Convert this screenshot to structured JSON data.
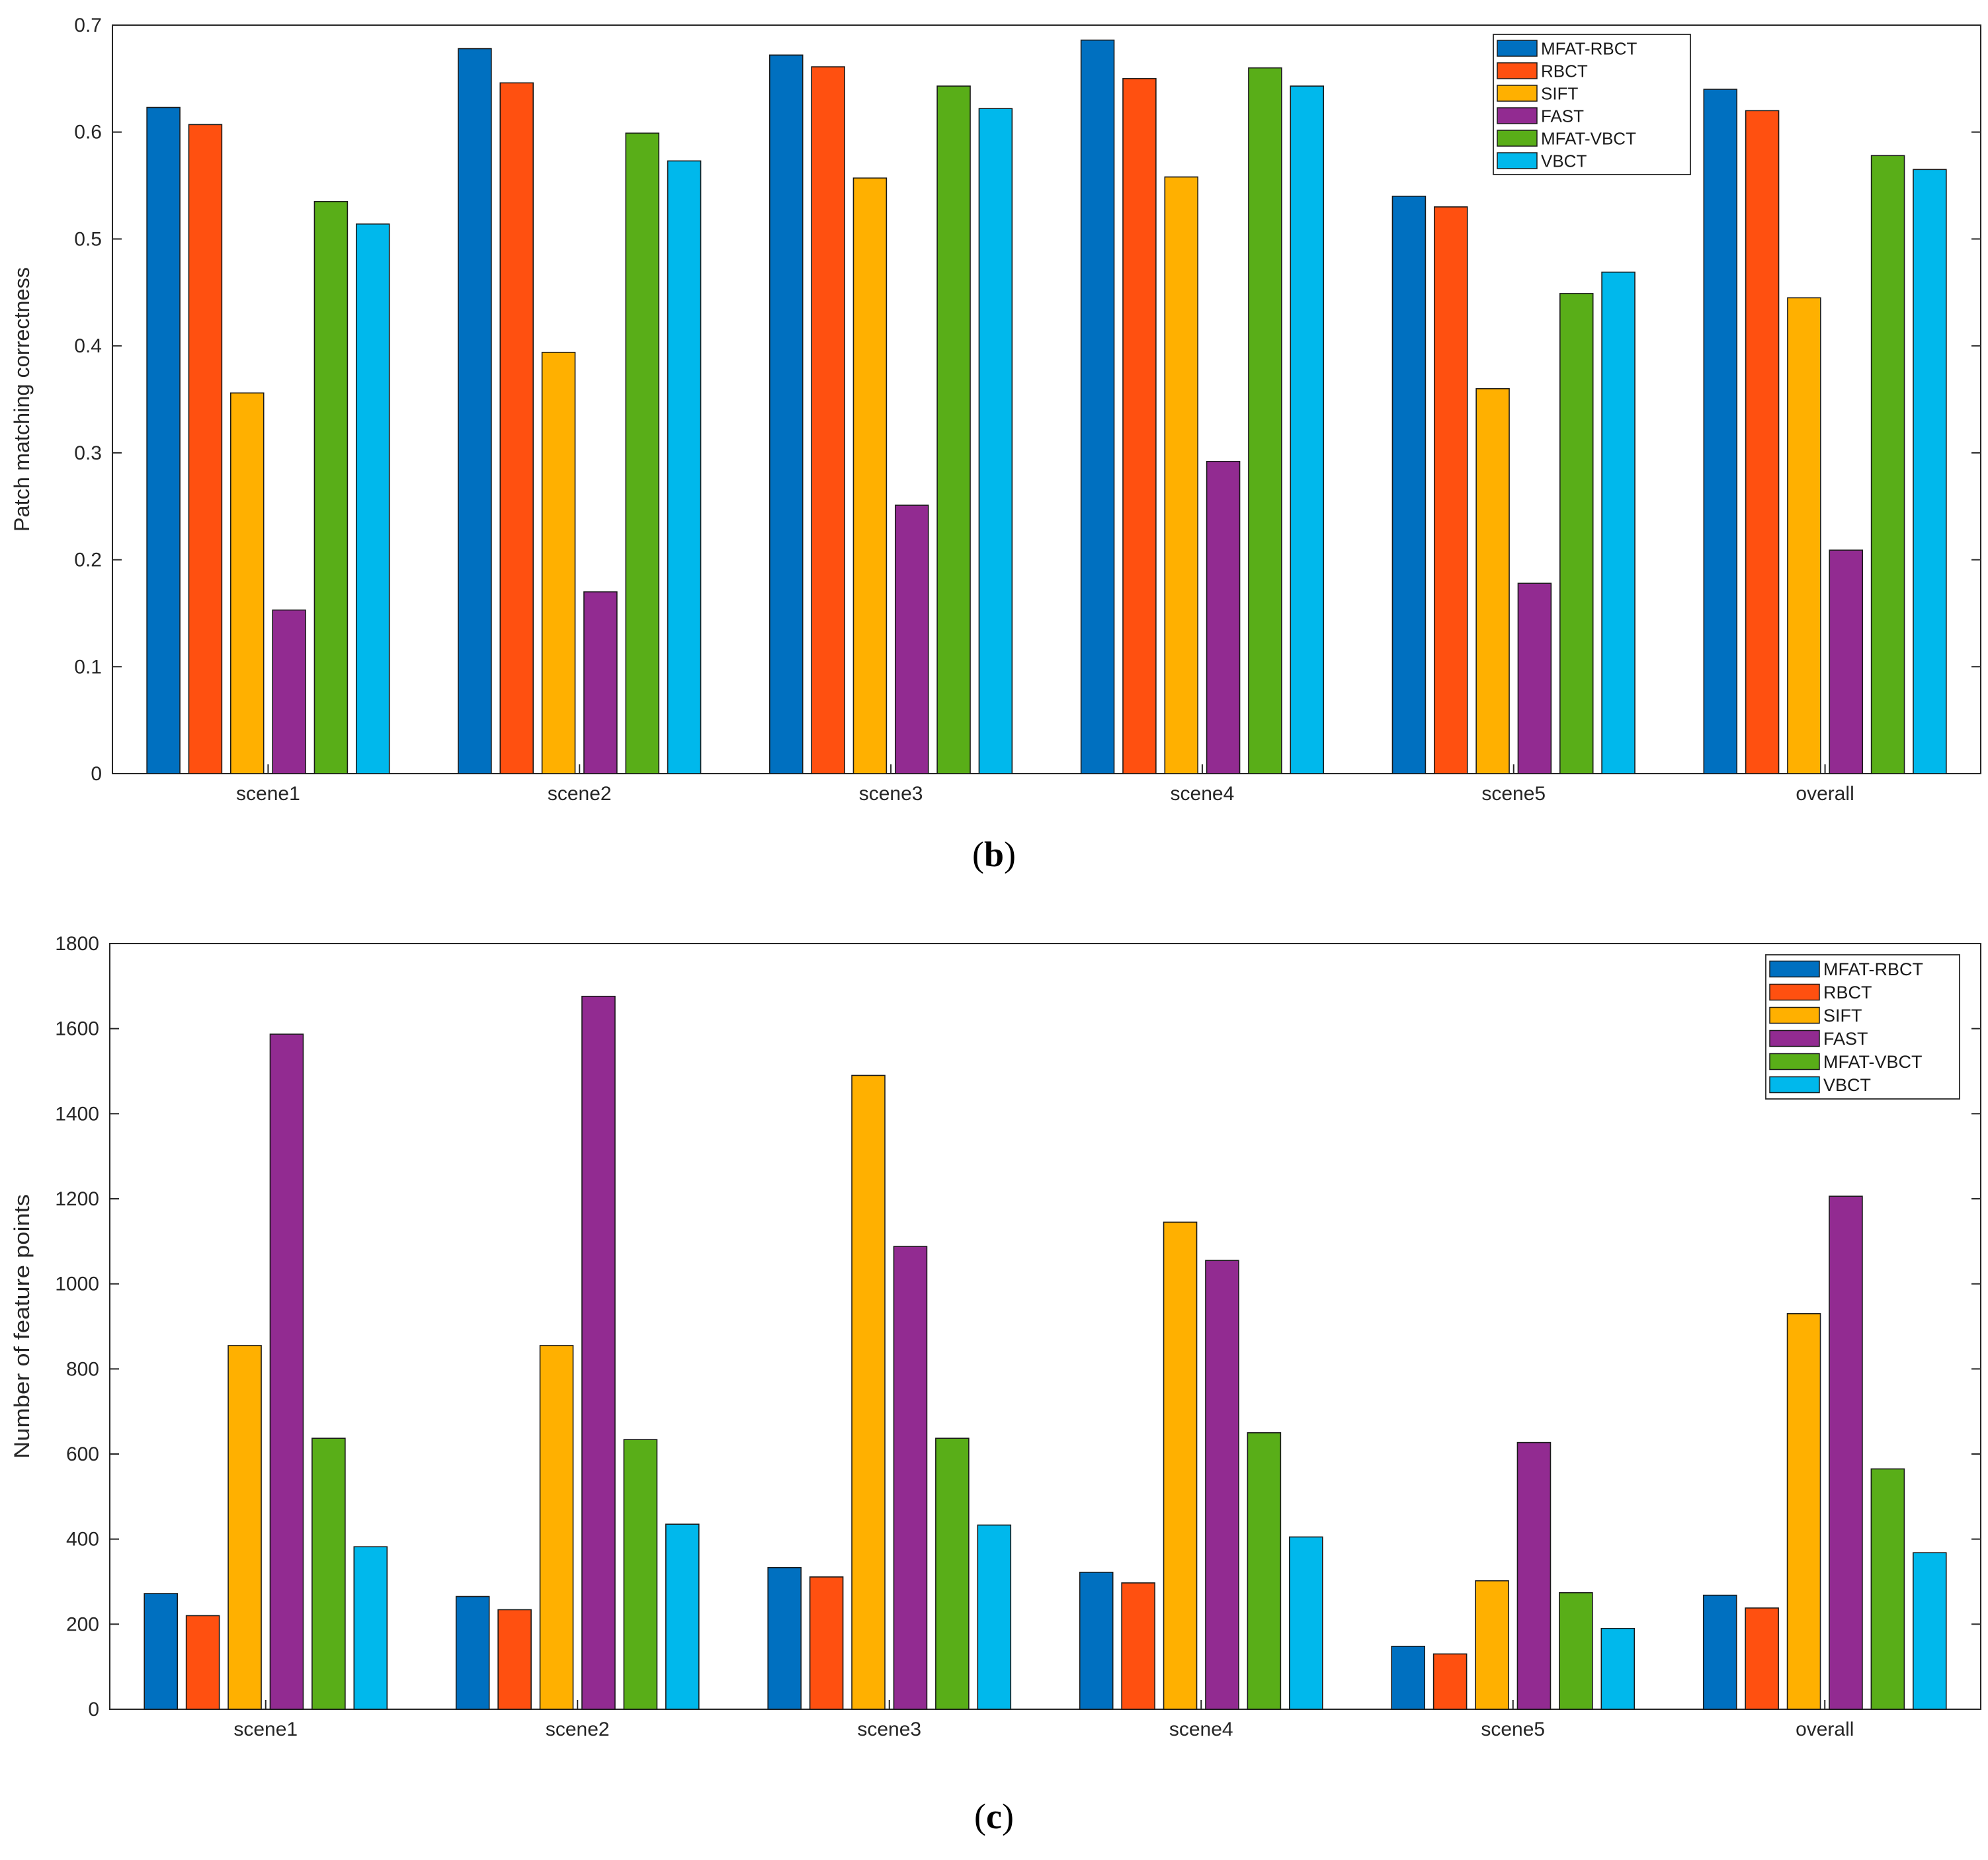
{
  "chart_data": [
    {
      "type": "bar",
      "panel_label": "(b)",
      "panel_letter": "b",
      "title": "",
      "xlabel": "",
      "ylabel": "Patch matching correctness",
      "ylim": [
        0,
        0.7
      ],
      "yticks": [
        0,
        0.1,
        0.2,
        0.3,
        0.4,
        0.5,
        0.6,
        0.7
      ],
      "ytick_labels": [
        "0",
        "0.1",
        "0.2",
        "0.3",
        "0.4",
        "0.5",
        "0.6",
        "0.7"
      ],
      "categories": [
        "scene1",
        "scene2",
        "scene3",
        "scene4",
        "scene5",
        "overall"
      ],
      "legend_position": "top-right",
      "series": [
        {
          "name": "MFAT-RBCT",
          "color": "#0070c0",
          "values": [
            0.623,
            0.678,
            0.672,
            0.686,
            0.54,
            0.64
          ]
        },
        {
          "name": "RBCT",
          "color": "#ff5010",
          "values": [
            0.607,
            0.646,
            0.661,
            0.65,
            0.53,
            0.62
          ]
        },
        {
          "name": "SIFT",
          "color": "#ffb000",
          "values": [
            0.356,
            0.394,
            0.557,
            0.558,
            0.36,
            0.445
          ]
        },
        {
          "name": "FAST",
          "color": "#922b91",
          "values": [
            0.153,
            0.17,
            0.251,
            0.292,
            0.178,
            0.209
          ]
        },
        {
          "name": "MFAT-VBCT",
          "color": "#59ae18",
          "values": [
            0.535,
            0.599,
            0.643,
            0.66,
            0.449,
            0.578
          ]
        },
        {
          "name": "VBCT",
          "color": "#00b8ec",
          "values": [
            0.514,
            0.573,
            0.622,
            0.643,
            0.469,
            0.565
          ]
        }
      ]
    },
    {
      "type": "bar",
      "panel_label": "(c)",
      "panel_letter": "c",
      "title": "",
      "xlabel": "",
      "ylabel": "Number of feature points",
      "ylim": [
        0,
        1800
      ],
      "yticks": [
        0,
        200,
        400,
        600,
        800,
        1000,
        1200,
        1400,
        1600,
        1800
      ],
      "ytick_labels": [
        "0",
        "200",
        "400",
        "600",
        "800",
        "1000",
        "1200",
        "1400",
        "1600",
        "1800"
      ],
      "categories": [
        "scene1",
        "scene2",
        "scene3",
        "scene4",
        "scene5",
        "overall"
      ],
      "legend_position": "top-right",
      "series": [
        {
          "name": "MFAT-RBCT",
          "color": "#0070c0",
          "values": [
            272,
            265,
            333,
            322,
            148,
            268
          ]
        },
        {
          "name": "RBCT",
          "color": "#ff5010",
          "values": [
            220,
            234,
            311,
            297,
            130,
            238
          ]
        },
        {
          "name": "SIFT",
          "color": "#ffb000",
          "values": [
            855,
            855,
            1490,
            1145,
            302,
            930
          ]
        },
        {
          "name": "FAST",
          "color": "#922b91",
          "values": [
            1587,
            1676,
            1088,
            1055,
            627,
            1206
          ]
        },
        {
          "name": "MFAT-VBCT",
          "color": "#59ae18",
          "values": [
            637,
            634,
            637,
            650,
            274,
            565
          ]
        },
        {
          "name": "VBCT",
          "color": "#00b8ec",
          "values": [
            382,
            435,
            433,
            405,
            190,
            368
          ]
        }
      ]
    }
  ]
}
